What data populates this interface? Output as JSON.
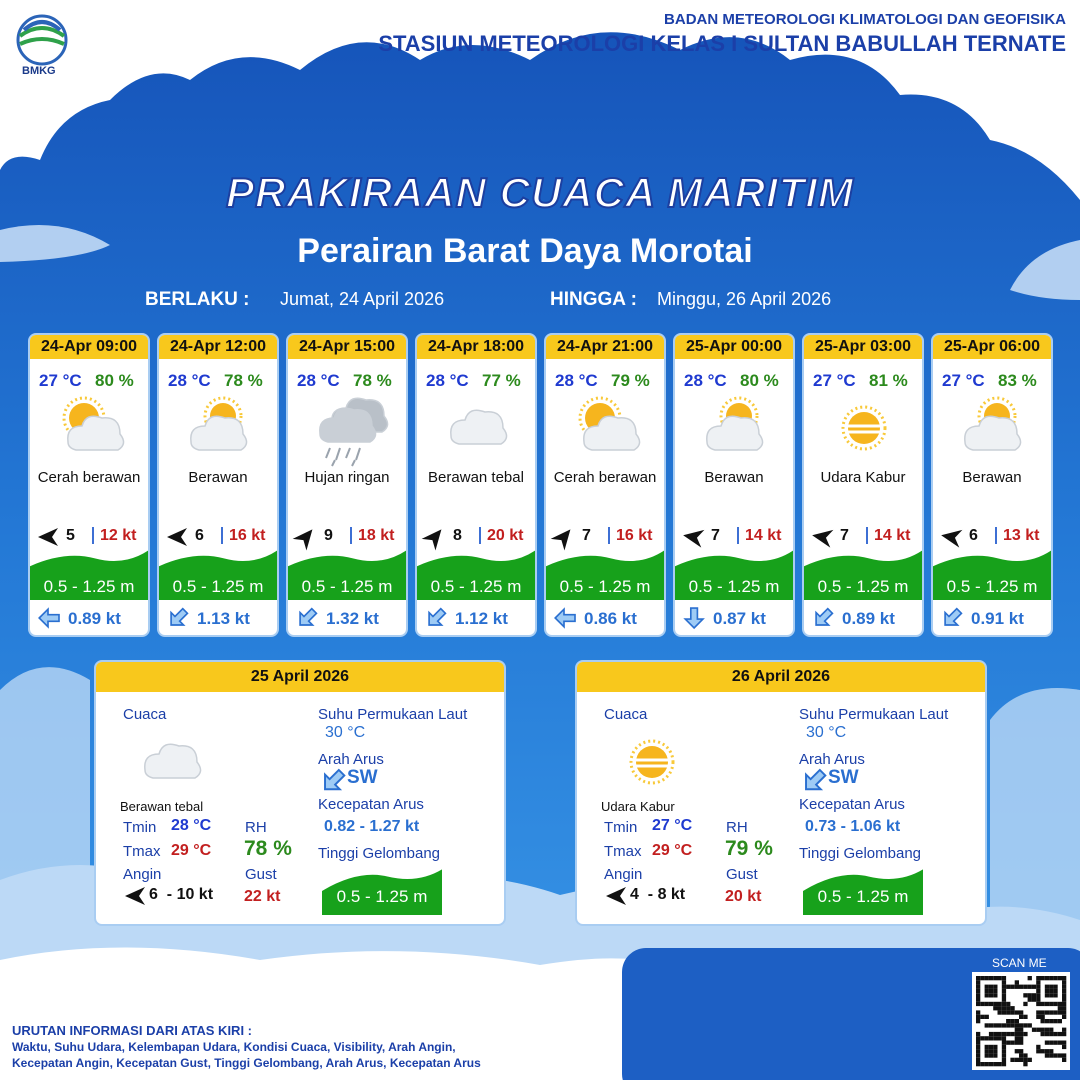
{
  "header": {
    "logo": "BMKG",
    "agency": "BADAN METEOROLOGI KLIMATOLOGI DAN GEOFISIKA",
    "station": "STASIUN METEOROLOGI KELAS I SULTAN BABULLAH TERNATE"
  },
  "title": "PRAKIRAAN CUACA MARITIM",
  "subtitle": "Perairan Barat Daya Morotai",
  "validity": {
    "from_label": "BERLAKU :",
    "from": "Jumat, 24 April 2026",
    "to_label": "HINGGA :",
    "to": "Minggu, 26 April 2026"
  },
  "forecasts": [
    {
      "time": "24-Apr 09:00",
      "temp": "27 °C",
      "rh": "80 %",
      "weather": "Cerah berawan",
      "icon": "sun-cloud",
      "wind": "5",
      "wind_arrow_deg": 180,
      "gust": "12 kt",
      "wave": "0.5 - 1.25 m",
      "current": "0.89 kt",
      "current_arrow_deg": 180
    },
    {
      "time": "24-Apr 12:00",
      "temp": "28 °C",
      "rh": "78 %",
      "weather": "Berawan",
      "icon": "cloud-sun",
      "wind": "6",
      "wind_arrow_deg": 180,
      "gust": "16 kt",
      "wave": "0.5 - 1.25 m",
      "current": "1.13 kt",
      "current_arrow_deg": 135
    },
    {
      "time": "24-Apr 15:00",
      "temp": "28 °C",
      "rh": "78 %",
      "weather": "Hujan ringan",
      "icon": "rain",
      "wind": "9",
      "wind_arrow_deg": -50,
      "gust": "18 kt",
      "wave": "0.5 - 1.25 m",
      "current": "1.32 kt",
      "current_arrow_deg": 135
    },
    {
      "time": "24-Apr 18:00",
      "temp": "28 °C",
      "rh": "77 %",
      "weather": "Berawan tebal",
      "icon": "cloud",
      "wind": "8",
      "wind_arrow_deg": -50,
      "gust": "20 kt",
      "wave": "0.5 - 1.25 m",
      "current": "1.12 kt",
      "current_arrow_deg": 135
    },
    {
      "time": "24-Apr 21:00",
      "temp": "28 °C",
      "rh": "79 %",
      "weather": "Cerah berawan",
      "icon": "sun-cloud",
      "wind": "7",
      "wind_arrow_deg": -50,
      "gust": "16 kt",
      "wave": "0.5 - 1.25 m",
      "current": "0.86 kt",
      "current_arrow_deg": 180
    },
    {
      "time": "25-Apr 00:00",
      "temp": "28 °C",
      "rh": "80 %",
      "weather": "Berawan",
      "icon": "cloud-sun",
      "wind": "7",
      "wind_arrow_deg": 190,
      "gust": "14 kt",
      "wave": "0.5 - 1.25 m",
      "current": "0.87 kt",
      "current_arrow_deg": 90
    },
    {
      "time": "25-Apr 03:00",
      "temp": "27 °C",
      "rh": "81 %",
      "weather": "Udara Kabur",
      "icon": "haze",
      "wind": "7",
      "wind_arrow_deg": 190,
      "gust": "14 kt",
      "wave": "0.5 - 1.25 m",
      "current": "0.89 kt",
      "current_arrow_deg": 135
    },
    {
      "time": "25-Apr 06:00",
      "temp": "27 °C",
      "rh": "83 %",
      "weather": "Berawan",
      "icon": "cloud-sun",
      "wind": "6",
      "wind_arrow_deg": 190,
      "gust": "13 kt",
      "wave": "0.5 - 1.25 m",
      "current": "0.91 kt",
      "current_arrow_deg": 135
    }
  ],
  "daily": [
    {
      "date": "25 April 2026",
      "weather_label": "Cuaca",
      "weather": "Berawan tebal",
      "icon": "cloud",
      "tmin_label": "Tmin",
      "tmin": "28 °C",
      "tmax_label": "Tmax",
      "tmax": "29 °C",
      "rh_label": "RH",
      "rh": "78 %",
      "wind_label": "Angin",
      "wind": "6  - 10 kt",
      "gust_label": "Gust",
      "gust": "22 kt",
      "sst_label": "Suhu Permukaan Laut",
      "sst": "30 °C",
      "current_dir_label": "Arah Arus",
      "current_dir": "SW",
      "current_speed_label": "Kecepatan Arus",
      "current_speed": "0.82 - 1.27 kt",
      "wave_label": "Tinggi Gelombang",
      "wave": "0.5 - 1.25 m"
    },
    {
      "date": "26 April 2026",
      "weather_label": "Cuaca",
      "weather": "Udara Kabur",
      "icon": "haze",
      "tmin_label": "Tmin",
      "tmin": "27 °C",
      "tmax_label": "Tmax",
      "tmax": "29 °C",
      "rh_label": "RH",
      "rh": "79 %",
      "wind_label": "Angin",
      "wind": "4  - 8 kt",
      "gust_label": "Gust",
      "gust": "20 kt",
      "sst_label": "Suhu Permukaan Laut",
      "sst": "30 °C",
      "current_dir_label": "Arah Arus",
      "current_dir": "SW",
      "current_speed_label": "Kecepatan Arus",
      "current_speed": "0.73 - 1.06 kt",
      "wave_label": "Tinggi Gelombang",
      "wave": "0.5 - 1.25 m"
    }
  ],
  "footer": {
    "scan": "SCAN ME",
    "info_title": "URUTAN INFORMASI DARI ATAS KIRI :",
    "info_lines": [
      "Waktu, Suhu Udara, Kelembapan Udara, Kondisi Cuaca, Visibility, Arah Angin,",
      "Kecepatan Angin, Kecepatan Gust, Tinggi Gelombang, Arah Arus, Kecepatan Arus"
    ]
  }
}
